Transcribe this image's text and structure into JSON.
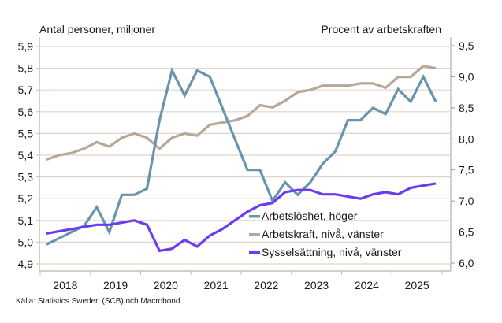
{
  "chart_data": {
    "type": "line",
    "left_axis": {
      "title": "Antal personer, miljoner",
      "range": [
        4.9,
        5.9
      ],
      "ticks": [
        "5,9",
        "5,8",
        "5,7",
        "5,6",
        "5,5",
        "5,4",
        "5,3",
        "5,2",
        "5,1",
        "5,0",
        "4,9"
      ],
      "tick_values": [
        5.9,
        5.8,
        5.7,
        5.6,
        5.5,
        5.4,
        5.3,
        5.2,
        5.1,
        5.0,
        4.9
      ]
    },
    "right_axis": {
      "title": "Procent av arbetskraften",
      "range": [
        6.0,
        9.5
      ],
      "ticks": [
        "9,5",
        "9,0",
        "8,5",
        "8,0",
        "7,5",
        "7,0",
        "6,5",
        "6,0"
      ],
      "tick_values": [
        9.5,
        9.0,
        8.5,
        8.0,
        7.5,
        7.0,
        6.5,
        6.0
      ]
    },
    "x_axis": {
      "categories": [
        "2018",
        "2019",
        "2020",
        "2021",
        "2022",
        "2023",
        "2024",
        "2025"
      ],
      "periods_per_year": 4
    },
    "grid": true,
    "legend_placement": "bottom-right",
    "series": [
      {
        "name": "Arbetslöshet, höger",
        "axis": "right",
        "color": "#6a93ad",
        "values": [
          6.3,
          6.4,
          6.5,
          6.6,
          6.9,
          6.5,
          7.1,
          7.1,
          7.2,
          8.3,
          9.1,
          8.7,
          9.1,
          9.0,
          8.5,
          8.0,
          7.5,
          7.5,
          7.0,
          7.3,
          7.1,
          7.3,
          7.6,
          7.8,
          8.3,
          8.3,
          8.5,
          8.4,
          8.8,
          8.6,
          9.0,
          8.6
        ]
      },
      {
        "name": "Arbetskraft, nivå, vänster",
        "axis": "left",
        "color": "#b5a898",
        "values": [
          5.38,
          5.4,
          5.41,
          5.43,
          5.46,
          5.44,
          5.48,
          5.5,
          5.48,
          5.43,
          5.48,
          5.5,
          5.49,
          5.54,
          5.55,
          5.56,
          5.58,
          5.63,
          5.62,
          5.65,
          5.69,
          5.7,
          5.72,
          5.72,
          5.72,
          5.73,
          5.73,
          5.71,
          5.76,
          5.76,
          5.81,
          5.8
        ]
      },
      {
        "name": "Sysselsättning, nivå, vänster",
        "axis": "left",
        "color": "#6b3cf0",
        "values": [
          5.04,
          5.05,
          5.06,
          5.07,
          5.08,
          5.08,
          5.09,
          5.1,
          5.08,
          4.96,
          4.97,
          5.01,
          4.98,
          5.03,
          5.06,
          5.1,
          5.14,
          5.17,
          5.18,
          5.23,
          5.24,
          5.24,
          5.22,
          5.22,
          5.21,
          5.2,
          5.22,
          5.23,
          5.22,
          5.25,
          5.26,
          5.27
        ]
      }
    ],
    "source": "Källa: Statistics Sweden (SCB)  och Macrobond"
  }
}
